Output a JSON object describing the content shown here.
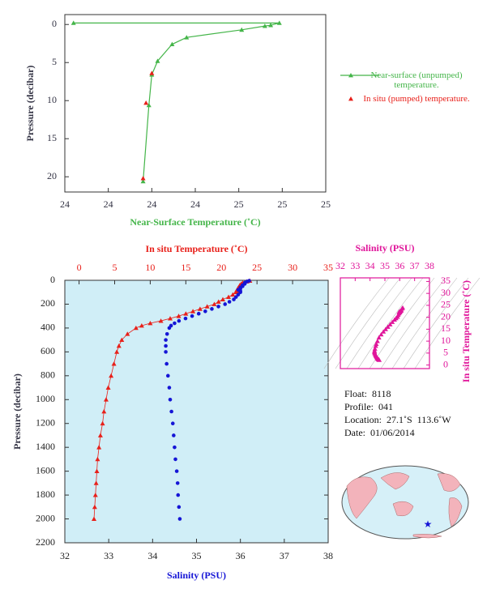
{
  "chart_data": [
    {
      "type": "line",
      "xlabel": "Near-Surface Temperature (˚C)",
      "ylabel": "Pressure (decibar)",
      "xlim": [
        24.0,
        24.9
      ],
      "xticks": [
        24,
        {
          "value": 24.15,
          "label": "24"
        },
        {
          "value": 24.3,
          "label": "24"
        },
        {
          "value": 24.45,
          "label": "24"
        },
        {
          "value": 24.6,
          "label": "25"
        },
        {
          "value": 24.75,
          "label": "25"
        },
        {
          "value": 24.9,
          "label": "25"
        }
      ],
      "ylim": [
        -1.3,
        22
      ],
      "y_inverted": true,
      "yticks": [
        0,
        5,
        10,
        15,
        20
      ],
      "series": [
        {
          "name": "Near-surface (unpumped) temperature.",
          "color": "#44b549",
          "marker": "triangle",
          "line": true,
          "x": [
            24.03,
            24.74,
            24.71,
            24.69,
            24.61,
            24.42,
            24.37,
            24.32,
            24.3,
            24.29,
            24.27
          ],
          "values": [
            -0.2,
            -0.2,
            0.1,
            0.2,
            0.7,
            1.7,
            2.6,
            4.8,
            6.6,
            10.6,
            20.6
          ]
        },
        {
          "name": "In situ (pumped) temperature.",
          "color": "#e8201a",
          "marker": "triangle",
          "line": false,
          "x": [
            24.3,
            24.28,
            24.27
          ],
          "values": [
            6.4,
            10.3,
            20.2
          ]
        }
      ]
    },
    {
      "type": "profile",
      "ylabel": "Pressure (decibar)",
      "ylim": [
        0,
        2200
      ],
      "y_inverted": true,
      "yticks": [
        0,
        200,
        400,
        600,
        800,
        1000,
        1200,
        1400,
        1600,
        1800,
        2000,
        2200
      ],
      "xlabel": "Salinity (PSU)",
      "xlim": [
        32,
        38
      ],
      "xticks": [
        32,
        33,
        34,
        35,
        36,
        37,
        38
      ],
      "x2label": "In situ Temperature (˚C)",
      "x2lim": [
        -2,
        35
      ],
      "x2ticks": [
        0,
        5,
        10,
        15,
        20,
        25,
        30,
        35
      ],
      "background": "#d0eef7",
      "pressure": [
        4,
        10,
        20,
        30,
        40,
        50,
        60,
        70,
        80,
        90,
        100,
        120,
        140,
        160,
        180,
        200,
        220,
        240,
        260,
        280,
        300,
        320,
        340,
        360,
        380,
        400,
        450,
        500,
        550,
        600,
        700,
        800,
        900,
        1000,
        1100,
        1200,
        1300,
        1400,
        1500,
        1600,
        1700,
        1800,
        1900,
        2000
      ],
      "series": [
        {
          "color": "#e8201a",
          "marker": "triangle",
          "axis": "x2",
          "line": true,
          "values": [
            24.0,
            23.6,
            23.0,
            22.8,
            22.6,
            22.6,
            22.4,
            22.3,
            22.2,
            22.3,
            22.0,
            21.6,
            21.0,
            20.2,
            19.6,
            19.0,
            18.0,
            17.0,
            16.0,
            15.0,
            14.0,
            12.8,
            11.5,
            10.0,
            8.8,
            8.0,
            6.8,
            6.0,
            5.6,
            5.3,
            4.9,
            4.5,
            4.1,
            3.8,
            3.5,
            3.3,
            3.0,
            2.8,
            2.6,
            2.5,
            2.4,
            2.3,
            2.2,
            2.1
          ]
        },
        {
          "color": "#1515d6",
          "marker": "circle",
          "axis": "x",
          "line": false,
          "values": [
            36.2,
            36.15,
            36.1,
            36.1,
            36.05,
            36.05,
            36.0,
            36.0,
            35.95,
            36.0,
            36.0,
            35.95,
            35.9,
            35.85,
            35.75,
            35.65,
            35.5,
            35.35,
            35.2,
            35.05,
            34.9,
            34.75,
            34.6,
            34.5,
            34.42,
            34.38,
            34.33,
            34.3,
            34.3,
            34.3,
            34.32,
            34.35,
            34.38,
            34.4,
            34.43,
            34.46,
            34.48,
            34.5,
            34.52,
            34.55,
            34.57,
            34.58,
            34.6,
            34.62
          ]
        }
      ]
    },
    {
      "type": "ts",
      "xlabel": "Salinity (PSU)",
      "xlim": [
        32,
        38
      ],
      "xticks": [
        32,
        33,
        34,
        35,
        36,
        37,
        38
      ],
      "ylabel": "In situ Temperature (˚C)",
      "ylim": [
        -1.5,
        36.5
      ],
      "yticks": [
        0,
        5,
        10,
        15,
        20,
        25,
        30,
        35
      ],
      "color": "#e0159a"
    }
  ],
  "float_info": [
    "Float:  8118",
    "Profile:  041",
    "Location:  27.1˚S  113.6˚W",
    "Date:  01/06/2014"
  ]
}
